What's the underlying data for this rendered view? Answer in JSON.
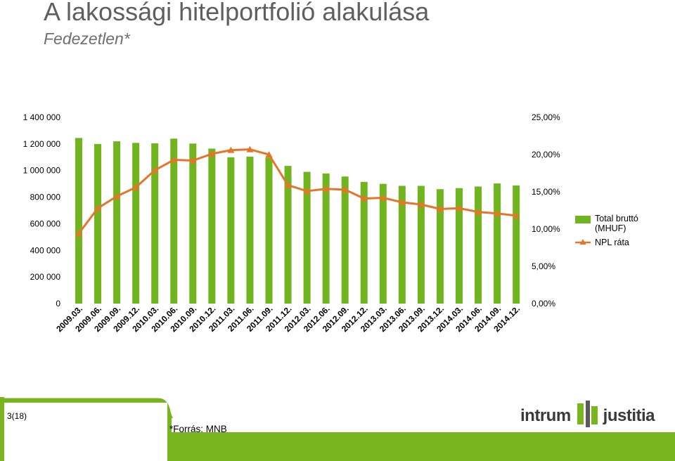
{
  "header": {
    "title": "A lakossági hitelportfolió alakulása",
    "subtitle": "Fedezetlen*"
  },
  "chart_data": {
    "type": "bar",
    "title": "",
    "categories": [
      "2009.03.",
      "2009.06.",
      "2009.09.",
      "2009.12.",
      "2010.03.",
      "2010.06.",
      "2010.09.",
      "2010.12.",
      "2011.03.",
      "2011.06.",
      "2011.09.",
      "2011.12.",
      "2012.03.",
      "2012.06.",
      "2012.09.",
      "2012.12.",
      "2013.03.",
      "2013.06.",
      "2013.09.",
      "2013.12.",
      "2014.03.",
      "2014.06.",
      "2014.09.",
      "2014.12."
    ],
    "series": [
      {
        "name": "Total bruttó (MHUF)",
        "type": "bar",
        "axis": "left",
        "color": "#70b51e",
        "values": [
          1245000,
          1200000,
          1220000,
          1208000,
          1205000,
          1240000,
          1203000,
          1165000,
          1100000,
          1105000,
          1098000,
          1035000,
          990000,
          978000,
          955000,
          915000,
          900000,
          885000,
          885000,
          860000,
          868000,
          880000,
          903000,
          888000
        ]
      },
      {
        "name": "NPL ráta",
        "type": "line",
        "axis": "right",
        "color": "#e4762a",
        "marker": "triangle",
        "values": [
          9.4,
          12.8,
          14.4,
          15.6,
          17.9,
          19.3,
          19.2,
          20.1,
          20.6,
          20.7,
          20.0,
          15.9,
          15.1,
          15.4,
          15.3,
          14.1,
          14.2,
          13.6,
          13.3,
          12.7,
          12.8,
          12.3,
          12.1,
          11.8
        ]
      }
    ],
    "yaxis_left": {
      "ticks": [
        "1 400 000",
        "1 200 000",
        "1 000 000",
        "800 000",
        "600 000",
        "400 000",
        "200 000",
        "0"
      ],
      "ylim": [
        0,
        1400000
      ]
    },
    "yaxis_right": {
      "ticks": [
        "25,00%",
        "20,00%",
        "15,00%",
        "10,00%",
        "5,00%",
        "0,00%"
      ],
      "ylim": [
        0,
        25
      ]
    },
    "grid": false,
    "legend_position": "right"
  },
  "footer": {
    "page_number": "3(18)",
    "source": "*Forrás: MNB",
    "logo_left": "intrum",
    "logo_right": "justitia",
    "band_color": "#78b51f"
  }
}
